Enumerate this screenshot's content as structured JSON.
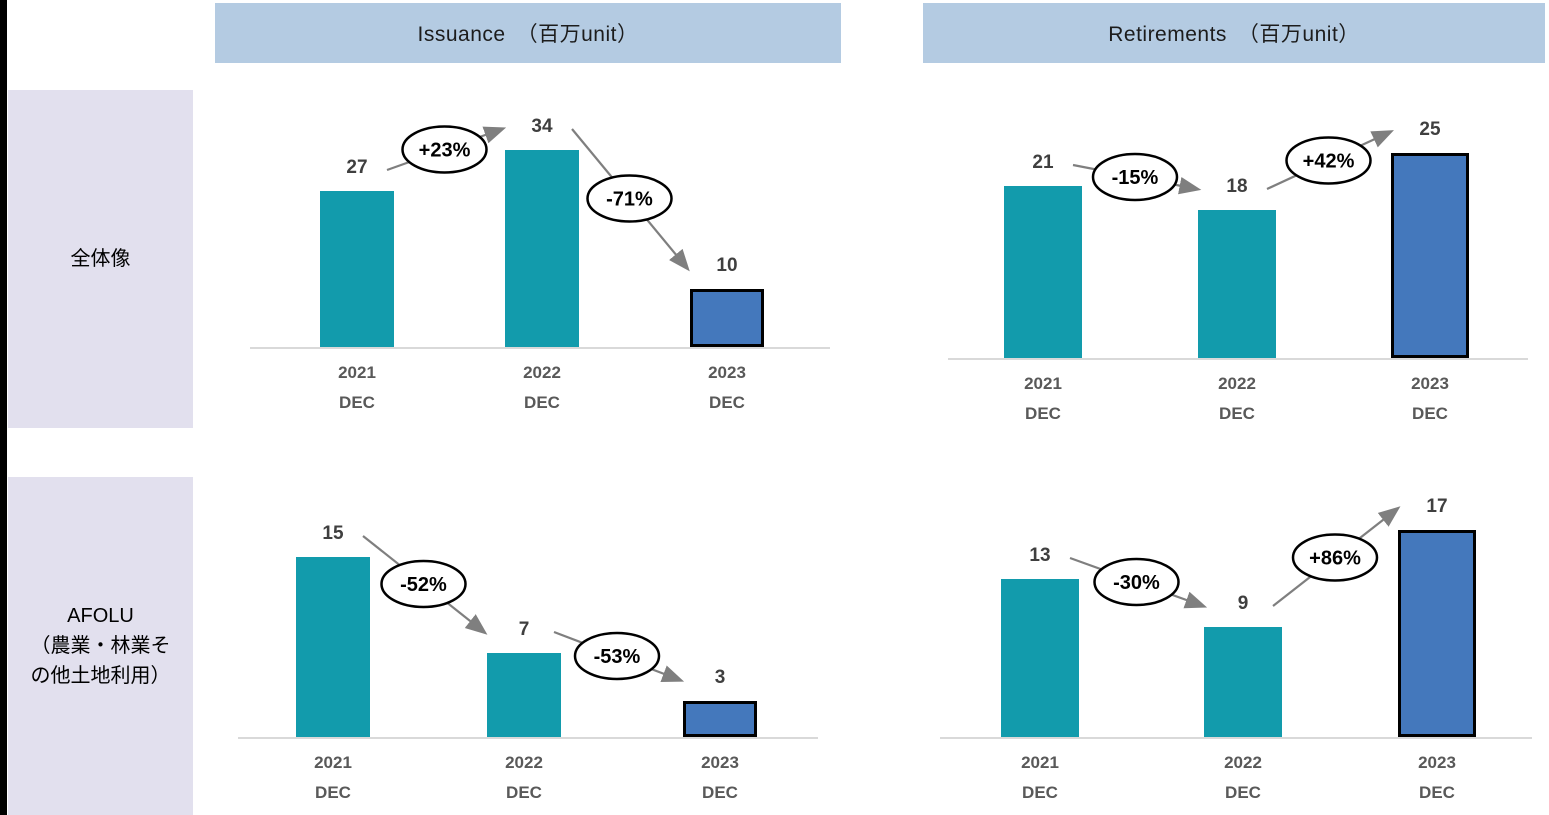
{
  "colors": {
    "page_bg": "#FFFFFF",
    "left_edge": "#000000",
    "header_bg": "#B4CBE2",
    "header_text": "#1C1C1C",
    "sidebar_bg": "#E2E0EE",
    "sidebar_text": "#000000",
    "bar_teal": "#129BAC",
    "bar_blue": "#4478BC",
    "bar_blue_border": "#000000",
    "axis_line": "#D9D9D9",
    "arrow": "#7F7F7F",
    "value_label": "#3F3F3F",
    "tick_label": "#595959",
    "oval_bg": "#FFFFFF",
    "oval_border": "#000000",
    "oval_text": "#000000"
  },
  "headers": [
    {
      "label": "Issuance　（百万unit）"
    },
    {
      "label": "Retirements　（百万unit）"
    }
  ],
  "sidebar": {
    "rows": [
      {
        "lines": [
          "全体像"
        ]
      },
      {
        "lines": [
          "AFOLU",
          "（農業・林業そ",
          "の他土地利用）"
        ]
      }
    ]
  },
  "chart_data": [
    {
      "id": "overall-issuance",
      "type": "bar",
      "row": "全体像",
      "title": "Issuance　（百万unit）",
      "categories": [
        "2021",
        "2022",
        "2023"
      ],
      "category_sub": "DEC",
      "values": [
        27,
        34,
        10
      ],
      "bar_styles": [
        "teal",
        "teal",
        "blue"
      ],
      "changes": [
        "+23%",
        "-71%"
      ],
      "grid": false
    },
    {
      "id": "overall-retirements",
      "type": "bar",
      "row": "全体像",
      "title": "Retirements　（百万unit）",
      "categories": [
        "2021",
        "2022",
        "2023"
      ],
      "category_sub": "DEC",
      "values": [
        21,
        18,
        25
      ],
      "bar_styles": [
        "teal",
        "teal",
        "blue"
      ],
      "changes": [
        "-15%",
        "+42%"
      ],
      "grid": false
    },
    {
      "id": "afolu-issuance",
      "type": "bar",
      "row": "AFOLU（農業・林業その他土地利用）",
      "title": "Issuance　（百万unit）",
      "categories": [
        "2021",
        "2022",
        "2023"
      ],
      "category_sub": "DEC",
      "values": [
        15,
        7,
        3
      ],
      "bar_styles": [
        "teal",
        "teal",
        "blue"
      ],
      "changes": [
        "-52%",
        "-53%"
      ],
      "grid": false
    },
    {
      "id": "afolu-retirements",
      "type": "bar",
      "row": "AFOLU（農業・林業その他土地利用）",
      "title": "Retirements　（百万unit）",
      "categories": [
        "2021",
        "2022",
        "2023"
      ],
      "category_sub": "DEC",
      "values": [
        13,
        9,
        17
      ],
      "bar_styles": [
        "teal",
        "teal",
        "blue"
      ],
      "changes": [
        "-30%",
        "+86%"
      ],
      "grid": false
    }
  ]
}
